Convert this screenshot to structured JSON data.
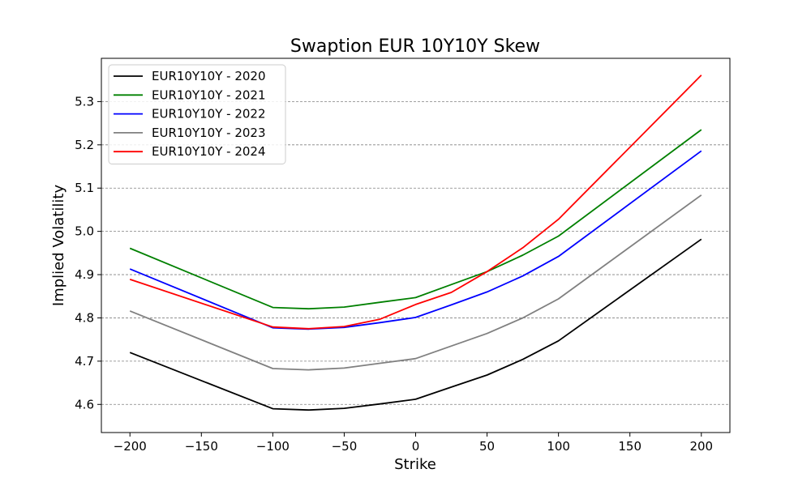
{
  "chart_data": {
    "type": "line",
    "title": "Swaption EUR 10Y10Y Skew",
    "xlabel": "Strike",
    "ylabel": "Implied Volatility",
    "xlim": [
      -220,
      220
    ],
    "ylim": [
      4.535,
      5.4
    ],
    "x_ticks": [
      -200,
      -150,
      -100,
      -50,
      0,
      50,
      100,
      150,
      200
    ],
    "x_tick_labels": [
      "−200",
      "−150",
      "−100",
      "−50",
      "0",
      "50",
      "100",
      "150",
      "200"
    ],
    "y_ticks": [
      4.6,
      4.7,
      4.8,
      4.9,
      5.0,
      5.1,
      5.2,
      5.3
    ],
    "y_tick_labels": [
      "4.6",
      "4.7",
      "4.8",
      "4.9",
      "5.0",
      "5.1",
      "5.2",
      "5.3"
    ],
    "grid": "horizontal dashed",
    "legend_position": "top-left",
    "x": [
      -200,
      -100,
      -75,
      -50,
      -25,
      0,
      25,
      50,
      75,
      100,
      200
    ],
    "series": [
      {
        "name": "EUR10Y10Y - 2020",
        "color": "#000000",
        "values": [
          4.72,
          4.59,
          4.587,
          4.591,
          4.601,
          4.612,
          4.64,
          4.668,
          4.704,
          4.747,
          4.982
        ]
      },
      {
        "name": "EUR10Y10Y - 2021",
        "color": "#008000",
        "values": [
          4.961,
          4.824,
          4.821,
          4.825,
          4.836,
          4.847,
          4.877,
          4.907,
          4.945,
          4.989,
          5.235
        ]
      },
      {
        "name": "EUR10Y10Y - 2022",
        "color": "#0000ff",
        "values": [
          4.913,
          4.777,
          4.774,
          4.778,
          4.789,
          4.801,
          4.83,
          4.86,
          4.897,
          4.942,
          5.186
        ]
      },
      {
        "name": "EUR10Y10Y - 2023",
        "color": "#808080",
        "values": [
          4.816,
          4.683,
          4.68,
          4.684,
          4.695,
          4.706,
          4.735,
          4.764,
          4.8,
          4.844,
          5.084
        ]
      },
      {
        "name": "EUR10Y10Y - 2024",
        "color": "#ff0000",
        "values": [
          4.889,
          4.779,
          4.775,
          4.78,
          4.797,
          4.831,
          4.859,
          4.907,
          4.962,
          5.028,
          5.361
        ]
      }
    ]
  }
}
